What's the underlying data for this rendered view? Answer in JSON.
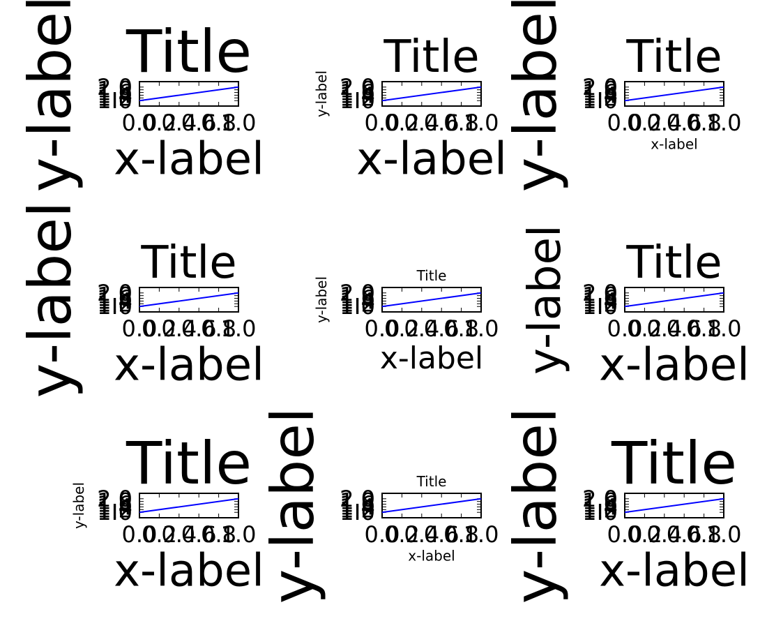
{
  "figure": {
    "background": "#ffffff",
    "axes_color": "#000000",
    "line_color": "#0000ff"
  },
  "chart_data": [
    {
      "type": "line",
      "title": "Title",
      "xlabel": "x-label",
      "ylabel": "y-label",
      "xlim": [
        0,
        1
      ],
      "ylim": [
        0.6,
        2.4
      ],
      "x": [
        0,
        1
      ],
      "y": [
        1,
        2
      ],
      "xticks": [
        "0.0",
        "0.2",
        "0.4",
        "0.6",
        "0.8",
        "1.0"
      ],
      "yticks": [
        "1.0",
        "1.2",
        "1.4",
        "1.6",
        "1.8",
        "2.0"
      ],
      "grid": false,
      "legend": "none",
      "label_scale": {
        "title": "large",
        "xlabel": "large",
        "ylabel": "large"
      }
    },
    {
      "type": "line",
      "title": "Title",
      "xlabel": "x-label",
      "ylabel": "y-label",
      "xlim": [
        0,
        1
      ],
      "ylim": [
        0.6,
        2.4
      ],
      "x": [
        0,
        1
      ],
      "y": [
        1,
        2
      ],
      "xticks": [
        "0.0",
        "0.2",
        "0.4",
        "0.6",
        "0.8",
        "1.0"
      ],
      "yticks": [
        "1.0",
        "1.2",
        "1.4",
        "1.6",
        "1.8",
        "2.0"
      ],
      "grid": false,
      "legend": "none",
      "label_scale": {
        "title": "medium",
        "xlabel": "large",
        "ylabel": "small"
      }
    },
    {
      "type": "line",
      "title": "Title",
      "xlabel": "x-label",
      "ylabel": "y-label",
      "xlim": [
        0,
        1
      ],
      "ylim": [
        0.6,
        2.4
      ],
      "x": [
        0,
        1
      ],
      "y": [
        1,
        2
      ],
      "xticks": [
        "0.0",
        "0.2",
        "0.4",
        "0.6",
        "0.8",
        "1.0"
      ],
      "yticks": [
        "1.0",
        "1.2",
        "1.4",
        "1.6",
        "1.8",
        "2.0"
      ],
      "grid": false,
      "legend": "none",
      "label_scale": {
        "title": "medium",
        "xlabel": "small",
        "ylabel": "large"
      }
    },
    {
      "type": "line",
      "title": "Title",
      "xlabel": "x-label",
      "ylabel": "y-label",
      "xlim": [
        0,
        1
      ],
      "ylim": [
        0.6,
        2.4
      ],
      "x": [
        0,
        1
      ],
      "y": [
        1,
        2
      ],
      "xticks": [
        "0.0",
        "0.2",
        "0.4",
        "0.6",
        "0.8",
        "1.0"
      ],
      "yticks": [
        "1.0",
        "1.2",
        "1.4",
        "1.6",
        "1.8",
        "2.0"
      ],
      "grid": false,
      "legend": "none",
      "label_scale": {
        "title": "medium",
        "xlabel": "large",
        "ylabel": "large"
      }
    },
    {
      "type": "line",
      "title": "Title",
      "xlabel": "x-label",
      "ylabel": "y-label",
      "xlim": [
        0,
        1
      ],
      "ylim": [
        0.6,
        2.4
      ],
      "x": [
        0,
        1
      ],
      "y": [
        1,
        2
      ],
      "xticks": [
        "0.0",
        "0.2",
        "0.4",
        "0.6",
        "0.8",
        "1.0"
      ],
      "yticks": [
        "1.0",
        "1.2",
        "1.4",
        "1.6",
        "1.8",
        "2.0"
      ],
      "grid": false,
      "legend": "none",
      "label_scale": {
        "title": "small",
        "xlabel": "medium",
        "ylabel": "small"
      }
    },
    {
      "type": "line",
      "title": "Title",
      "xlabel": "x-label",
      "ylabel": "y-label",
      "xlim": [
        0,
        1
      ],
      "ylim": [
        0.6,
        2.4
      ],
      "x": [
        0,
        1
      ],
      "y": [
        1,
        2
      ],
      "xticks": [
        "0.0",
        "0.2",
        "0.4",
        "0.6",
        "0.8",
        "1.0"
      ],
      "yticks": [
        "1.0",
        "1.2",
        "1.4",
        "1.6",
        "1.8",
        "2.0"
      ],
      "grid": false,
      "legend": "none",
      "label_scale": {
        "title": "medium",
        "xlabel": "large",
        "ylabel": "medium"
      }
    },
    {
      "type": "line",
      "title": "Title",
      "xlabel": "x-label",
      "ylabel": "y-label",
      "xlim": [
        0,
        1
      ],
      "ylim": [
        0.6,
        2.4
      ],
      "x": [
        0,
        1
      ],
      "y": [
        1,
        2
      ],
      "xticks": [
        "0.0",
        "0.2",
        "0.4",
        "0.6",
        "0.8",
        "1.0"
      ],
      "yticks": [
        "1.0",
        "1.2",
        "1.4",
        "1.6",
        "1.8",
        "2.0"
      ],
      "grid": false,
      "legend": "none",
      "label_scale": {
        "title": "large",
        "xlabel": "large",
        "ylabel": "small"
      }
    },
    {
      "type": "line",
      "title": "Title",
      "xlabel": "x-label",
      "ylabel": "y-label",
      "xlim": [
        0,
        1
      ],
      "ylim": [
        0.6,
        2.4
      ],
      "x": [
        0,
        1
      ],
      "y": [
        1,
        2
      ],
      "xticks": [
        "0.0",
        "0.2",
        "0.4",
        "0.6",
        "0.8",
        "1.0"
      ],
      "yticks": [
        "1.0",
        "1.2",
        "1.4",
        "1.6",
        "1.8",
        "2.0"
      ],
      "grid": false,
      "legend": "none",
      "label_scale": {
        "title": "small",
        "xlabel": "small",
        "ylabel": "large"
      }
    },
    {
      "type": "line",
      "title": "Title",
      "xlabel": "x-label",
      "ylabel": "y-label",
      "xlim": [
        0,
        1
      ],
      "ylim": [
        0.6,
        2.4
      ],
      "x": [
        0,
        1
      ],
      "y": [
        1,
        2
      ],
      "xticks": [
        "0.0",
        "0.2",
        "0.4",
        "0.6",
        "0.8",
        "1.0"
      ],
      "yticks": [
        "1.0",
        "1.2",
        "1.4",
        "1.6",
        "1.8",
        "2.0"
      ],
      "grid": false,
      "legend": "none",
      "label_scale": {
        "title": "large",
        "xlabel": "large",
        "ylabel": "large"
      }
    }
  ]
}
